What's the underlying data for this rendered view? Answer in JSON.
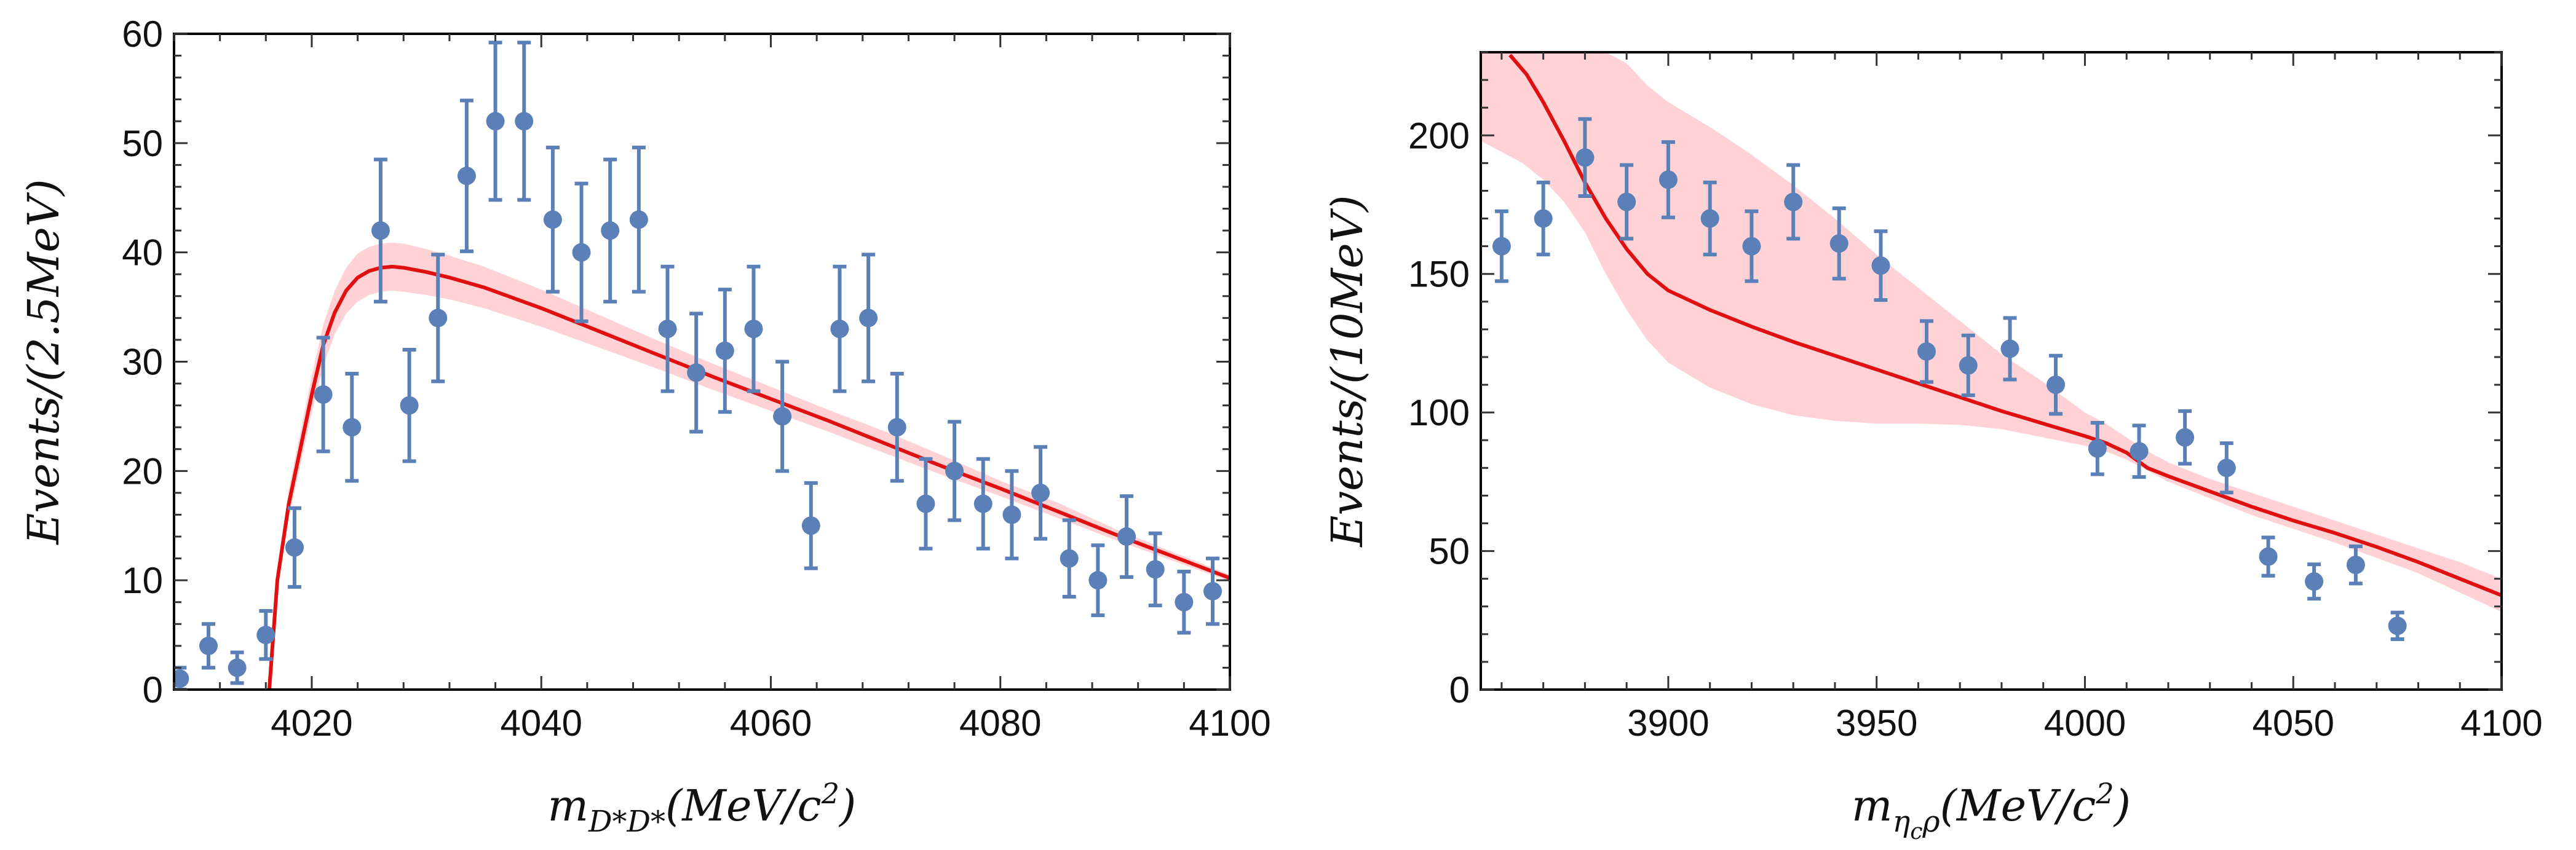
{
  "colors": {
    "points": "#5b80b8",
    "fit": "#e01010",
    "band": "#ffc0c6"
  },
  "chart_data": [
    {
      "type": "scatter",
      "xlabel_parts": {
        "base": "m",
        "sub": "D*D*",
        "rest": "(MeV/c",
        "sup": "2",
        "end": ")"
      },
      "ylabel": "Events/(2.5MeV)",
      "xlim": [
        4008,
        4100
      ],
      "ylim": [
        0,
        60
      ],
      "xticks": [
        4020,
        4040,
        4060,
        4080,
        4100
      ],
      "yticks": [
        0,
        10,
        20,
        30,
        40,
        50,
        60
      ],
      "series": [
        {
          "name": "data",
          "kind": "points_with_errors",
          "x": [
            4008.5,
            4011,
            4013.5,
            4016,
            4018.5,
            4021,
            4023.5,
            4026,
            4028.5,
            4031,
            4033.5,
            4036,
            4038.5,
            4041,
            4043.5,
            4046,
            4048.5,
            4051,
            4053.5,
            4056,
            4058.5,
            4061,
            4063.5,
            4066,
            4068.5,
            4071,
            4073.5,
            4076,
            4078.5,
            4081,
            4083.5,
            4086,
            4088.5,
            4091,
            4093.5,
            4096,
            4098.5
          ],
          "y": [
            1,
            4,
            2,
            5,
            13,
            27,
            24,
            42,
            26,
            34,
            47,
            52,
            52,
            43,
            40,
            42,
            43,
            33,
            29,
            31,
            33,
            25,
            15,
            33,
            34,
            24,
            17,
            20,
            17,
            16,
            18,
            12,
            10,
            14,
            11,
            8,
            9
          ],
          "err": [
            1,
            2,
            1.4,
            2.2,
            3.6,
            5.2,
            4.9,
            6.5,
            5.1,
            5.8,
            6.9,
            7.2,
            7.2,
            6.6,
            6.3,
            6.5,
            6.6,
            5.7,
            5.4,
            5.6,
            5.7,
            5,
            3.9,
            5.7,
            5.8,
            4.9,
            4.1,
            4.5,
            4.1,
            4,
            4.2,
            3.5,
            3.2,
            3.7,
            3.3,
            2.8,
            3
          ]
        },
        {
          "name": "fit",
          "kind": "line",
          "x": [
            4016.3,
            4017,
            4018,
            4019,
            4020,
            4021,
            4022,
            4023,
            4024,
            4025,
            4026,
            4027,
            4028,
            4030,
            4032,
            4035,
            4040,
            4045,
            4050,
            4055,
            4060,
            4065,
            4070,
            4075,
            4080,
            4085,
            4090,
            4095,
            4100
          ],
          "y": [
            0,
            10,
            17,
            22,
            27,
            31.5,
            34.5,
            36.5,
            37.7,
            38.3,
            38.6,
            38.7,
            38.6,
            38.2,
            37.7,
            36.8,
            34.9,
            32.8,
            30.7,
            28.6,
            26.6,
            24.6,
            22.5,
            20.4,
            18.4,
            16.3,
            14.2,
            12.2,
            10.2
          ]
        },
        {
          "name": "uncertainty band",
          "kind": "band",
          "x": [
            4017,
            4018,
            4019,
            4020,
            4021,
            4022,
            4023,
            4024,
            4025,
            4026,
            4027,
            4028,
            4030,
            4032,
            4035,
            4040,
            4045,
            4050,
            4055,
            4060,
            4065,
            4070,
            4075,
            4080,
            4085,
            4090,
            4095,
            4100
          ],
          "lo": [
            9,
            15.7,
            20.5,
            25.3,
            29.6,
            32.5,
            34.4,
            35.5,
            36.1,
            36.4,
            36.5,
            36.4,
            36.1,
            35.7,
            34.9,
            33.2,
            31.3,
            29.4,
            27.4,
            25.5,
            23.6,
            21.6,
            19.6,
            17.7,
            15.7,
            13.7,
            11.8,
            9.9
          ],
          "hi": [
            11,
            18.3,
            23.5,
            28.7,
            33.4,
            36.5,
            38.6,
            39.9,
            40.5,
            40.8,
            40.9,
            40.8,
            40.3,
            39.7,
            38.7,
            36.6,
            34.3,
            32,
            29.8,
            27.7,
            25.6,
            23.6,
            21.4,
            19.1,
            17.1,
            14.7,
            12.6,
            10.5
          ]
        }
      ]
    },
    {
      "type": "scatter",
      "xlabel_parts": {
        "base": "m",
        "sub": "η",
        "subsub": "c",
        "subrest": "ρ",
        "rest": "(MeV/c",
        "sup": "2",
        "end": ")"
      },
      "ylabel": "Events/(10MeV)",
      "xlim": [
        3855,
        4100
      ],
      "ylim": [
        0,
        230
      ],
      "xticks": [
        3900,
        3950,
        4000,
        4050,
        4100
      ],
      "yticks": [
        0,
        50,
        100,
        150,
        200
      ],
      "series": [
        {
          "name": "data",
          "kind": "points_with_errors",
          "x": [
            3860,
            3870,
            3880,
            3890,
            3900,
            3910,
            3920,
            3930,
            3941,
            3951,
            3962,
            3972,
            3982,
            3993,
            4003,
            4013,
            4024,
            4034,
            4044,
            4055,
            4065,
            4075
          ],
          "y": [
            160,
            170,
            192,
            176,
            184,
            170,
            160,
            176,
            161,
            153,
            122,
            117,
            123,
            110,
            87,
            86,
            91,
            80,
            48,
            39,
            45,
            23
          ],
          "err": [
            12.6,
            13,
            13.9,
            13.3,
            13.6,
            13,
            12.6,
            13.3,
            12.7,
            12.4,
            11,
            10.8,
            11.1,
            10.5,
            9.3,
            9.3,
            9.5,
            8.9,
            6.9,
            6.2,
            6.7,
            4.8
          ]
        },
        {
          "name": "fit",
          "kind": "line",
          "x": [
            3862,
            3866,
            3870,
            3875,
            3880,
            3885,
            3890,
            3895,
            3900,
            3910,
            3920,
            3930,
            3940,
            3950,
            3960,
            3970,
            3980,
            3990,
            4000,
            4005,
            4010,
            4015,
            4020,
            4030,
            4040,
            4050,
            4060,
            4070,
            4080,
            4090,
            4100
          ],
          "y": [
            229,
            222,
            212,
            198,
            183,
            170,
            159,
            150,
            144,
            137,
            131,
            125.5,
            120.5,
            115.5,
            110.5,
            105.5,
            100.5,
            96,
            91.5,
            89,
            85.5,
            80,
            77,
            71.5,
            66,
            61,
            56.5,
            51.5,
            46,
            40,
            34
          ]
        },
        {
          "name": "uncertainty band",
          "kind": "band",
          "x": [
            3855,
            3860,
            3865,
            3870,
            3875,
            3880,
            3885,
            3890,
            3895,
            3900,
            3910,
            3920,
            3930,
            3940,
            3950,
            3960,
            3970,
            3980,
            3990,
            4000,
            4005,
            4010,
            4015,
            4020,
            4030,
            4040,
            4050,
            4060,
            4070,
            4080,
            4090,
            4100
          ],
          "lo": [
            198,
            194,
            190,
            184,
            176,
            165,
            150,
            137,
            126,
            118,
            109,
            103,
            99,
            97,
            96,
            96,
            95.5,
            94,
            91,
            88,
            86,
            83,
            79,
            75,
            69,
            63,
            58,
            53,
            47.5,
            42,
            35,
            28
          ],
          "hi": [
            230,
            230,
            230,
            230,
            230,
            230,
            230,
            226,
            218,
            212,
            203,
            193,
            182,
            170,
            157,
            145,
            133,
            121,
            111,
            100,
            96,
            91,
            86,
            82,
            76,
            71,
            66,
            61,
            56,
            51,
            46,
            40
          ]
        }
      ]
    }
  ]
}
